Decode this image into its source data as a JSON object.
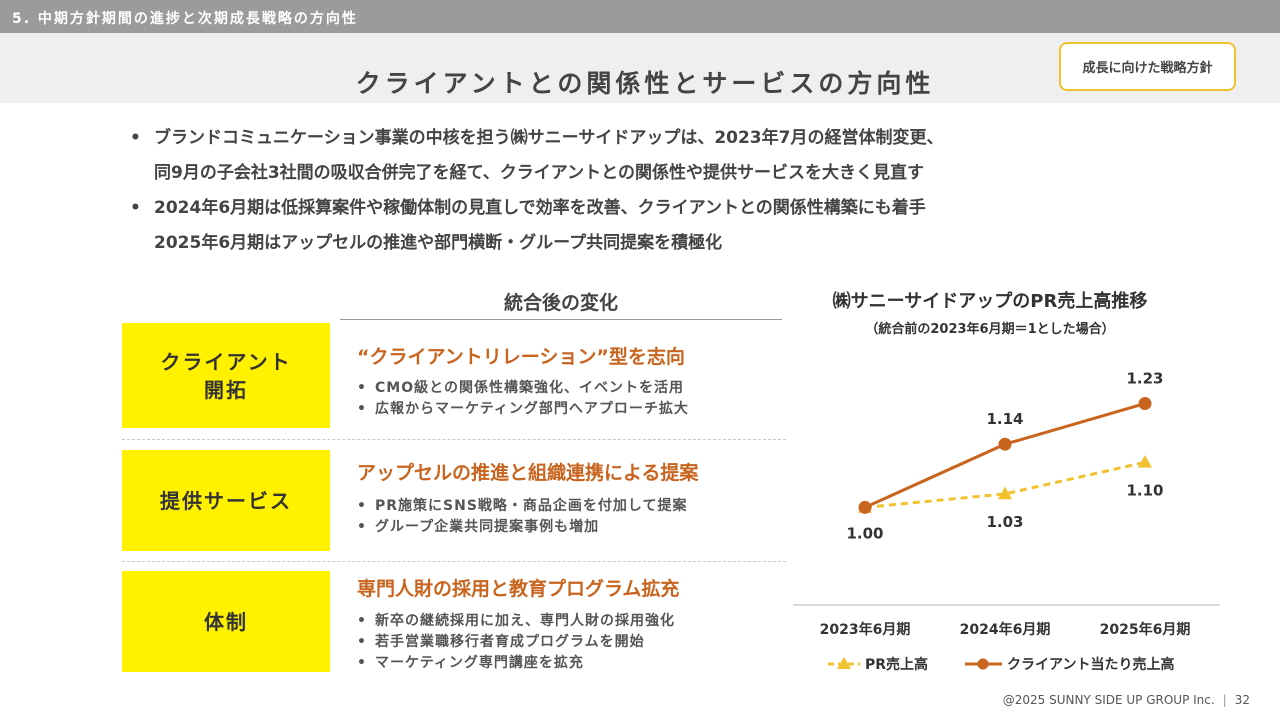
{
  "header": {
    "section_label": "5. 中期方針期間の進捗と次期成長戦略の方向性",
    "title": "クライアントとの関係性とサービスの方向性",
    "badge": "成長に向けた戦略方針"
  },
  "bullets": [
    {
      "marker": "•",
      "lines": [
        "ブランドコミュニケーション事業の中核を担う㈱サニーサイドアップは、2023年7月の経営体制変更、",
        "同9月の子会社3社間の吸収合併完了を経て、クライアントとの関係性や提供サービスを大きく見直す"
      ]
    },
    {
      "marker": "•",
      "lines": [
        "2024年6月期は低採算案件や稼働体制の見直しで効率を改善、クライアントとの関係性構築にも着手",
        "2025年6月期はアップセルの推進や部門横断・グループ共同提案を積極化"
      ]
    }
  ],
  "changes": {
    "header": "統合後の変化",
    "rows": [
      {
        "label_lines": [
          "クライアント",
          "開拓"
        ],
        "heading": "“クライアントリレーション”型を志向",
        "items": [
          "CMO級との関係性構築強化、イベントを活用",
          "広報からマーケティング部門へアプローチ拡大"
        ]
      },
      {
        "label_lines": [
          "提供サービス"
        ],
        "heading": "アップセルの推進と組織連携による提案",
        "items": [
          "PR施策にSNS戦略・商品企画を付加して提案",
          "グループ企業共同提案事例も増加"
        ]
      },
      {
        "label_lines": [
          "体制"
        ],
        "heading": "専門人財の採用と教育プログラム拡充",
        "items": [
          "新卒の継続採用に加え、専門人財の採用強化",
          "若手営業職移行者育成プログラムを開始",
          "マーケティング専門講座を拡充"
        ]
      }
    ]
  },
  "chart_data": {
    "type": "line",
    "title": "㈱サニーサイドアップのPR売上高推移",
    "subtitle": "（統合前の2023年6月期＝1とした場合）",
    "categories": [
      "2023年6月期",
      "2024年6月期",
      "2025年6月期"
    ],
    "series": [
      {
        "name": "PR売上高",
        "values": [
          1.0,
          1.03,
          1.1
        ],
        "labels": [
          "1.00",
          "1.03",
          "1.10"
        ],
        "color": "#f2c12e",
        "style": "dashed",
        "marker": "triangle"
      },
      {
        "name": "クライアント当たり売上高",
        "values": [
          1.0,
          1.14,
          1.23
        ],
        "labels": [
          "",
          "1.14",
          "1.23"
        ],
        "color": "#c8641e",
        "style": "solid",
        "marker": "circle"
      }
    ],
    "ylim": [
      0.95,
      1.26
    ],
    "grid": false,
    "legend": "bottom"
  },
  "footer": {
    "copyright": "@2025 SUNNY SIDE UP GROUP Inc.",
    "page_number": "32"
  }
}
